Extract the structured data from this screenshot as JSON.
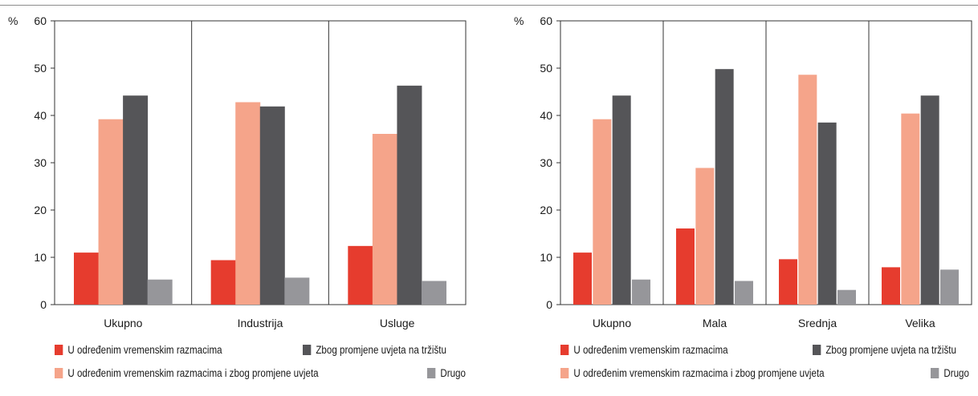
{
  "colors": {
    "s0": "#e63c2e",
    "s1": "#f5a48a",
    "s2": "#555558",
    "s3": "#96969a"
  },
  "chart_data": [
    {
      "type": "bar",
      "ylabel": "%",
      "ylim": [
        0,
        60
      ],
      "yticks": [
        "0",
        "10",
        "20",
        "30",
        "40",
        "50",
        "60"
      ],
      "categories": [
        "Ukupno",
        "Industrija",
        "Usluge"
      ],
      "series": [
        {
          "name": "U određenim vremenskim razmacima",
          "values": [
            11.0,
            9.4,
            12.4
          ]
        },
        {
          "name": "U određenim vremenskim razmacima i zbog promjene uvjeta",
          "values": [
            39.2,
            42.8,
            36.1
          ]
        },
        {
          "name": "Zbog promjene uvjeta na tržištu",
          "values": [
            44.2,
            41.9,
            46.3
          ]
        },
        {
          "name": "Drugo",
          "values": [
            5.3,
            5.7,
            5.0
          ]
        }
      ],
      "grid": "vertical separators",
      "legend": "bottom"
    },
    {
      "type": "bar",
      "ylabel": "%",
      "ylim": [
        0,
        60
      ],
      "yticks": [
        "0",
        "10",
        "20",
        "30",
        "40",
        "50",
        "60"
      ],
      "categories": [
        "Ukupno",
        "Mala",
        "Srednja",
        "Velika"
      ],
      "series": [
        {
          "name": "U određenim vremenskim razmacima",
          "values": [
            11.0,
            16.1,
            9.6,
            7.9
          ]
        },
        {
          "name": "U određenim vremenskim razmacima i zbog promjene uvjeta",
          "values": [
            39.2,
            28.9,
            48.6,
            40.4
          ]
        },
        {
          "name": "Zbog promjene uvjeta na tržištu",
          "values": [
            44.2,
            49.8,
            38.5,
            44.2
          ]
        },
        {
          "name": "Drugo",
          "values": [
            5.3,
            5.0,
            3.1,
            7.4
          ]
        }
      ],
      "grid": "vertical separators",
      "legend": "bottom"
    }
  ]
}
